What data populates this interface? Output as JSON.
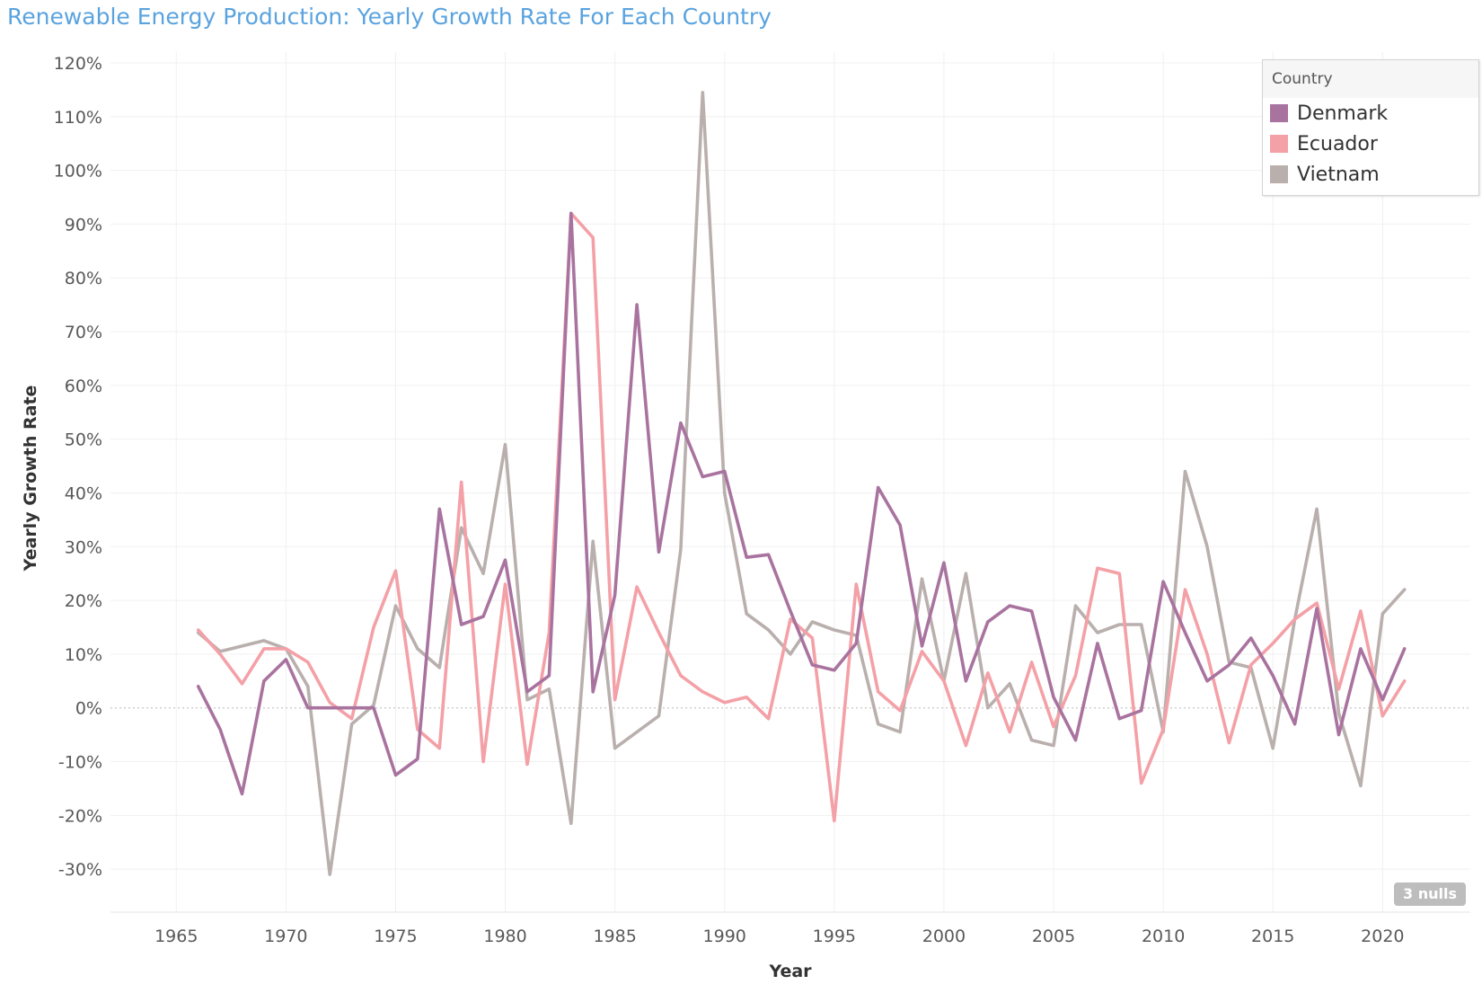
{
  "chart_data": {
    "type": "line",
    "title": "Renewable Energy Production: Yearly Growth Rate For Each Country",
    "xlabel": "Year",
    "ylabel": "Yearly Growth Rate",
    "xlim": [
      1962,
      2024
    ],
    "ylim": [
      -38,
      122
    ],
    "x_ticks": [
      1965,
      1970,
      1975,
      1980,
      1985,
      1990,
      1995,
      2000,
      2005,
      2010,
      2015,
      2020
    ],
    "y_ticks": [
      -30,
      -20,
      -10,
      0,
      10,
      20,
      30,
      40,
      50,
      60,
      70,
      80,
      90,
      100,
      110,
      120
    ],
    "y_tick_labels": [
      "-30%",
      "-20%",
      "-10%",
      "0%",
      "10%",
      "20%",
      "30%",
      "40%",
      "50%",
      "60%",
      "70%",
      "80%",
      "90%",
      "100%",
      "110%",
      "120%"
    ],
    "x": [
      1966,
      1967,
      1968,
      1969,
      1970,
      1971,
      1972,
      1973,
      1974,
      1975,
      1976,
      1977,
      1978,
      1979,
      1980,
      1981,
      1982,
      1983,
      1984,
      1985,
      1986,
      1987,
      1988,
      1989,
      1990,
      1991,
      1992,
      1993,
      1994,
      1995,
      1996,
      1997,
      1998,
      1999,
      2000,
      2001,
      2002,
      2003,
      2004,
      2005,
      2006,
      2007,
      2008,
      2009,
      2010,
      2011,
      2012,
      2013,
      2014,
      2015,
      2016,
      2017,
      2018,
      2019,
      2020,
      2021
    ],
    "series": [
      {
        "name": "Denmark",
        "color": "#a9739f",
        "values": [
          4,
          -4,
          -16,
          5,
          9,
          0,
          0,
          0,
          0,
          -12.5,
          -9.5,
          37,
          15.5,
          17,
          27.5,
          3,
          6,
          92,
          3,
          21,
          75,
          29,
          53,
          43,
          44,
          28,
          28.5,
          18,
          8,
          7,
          12,
          41,
          34,
          11.5,
          27,
          5,
          16,
          19,
          18,
          2,
          -6,
          12,
          -2,
          -0.5,
          23.5,
          14,
          5,
          8,
          13,
          6,
          -3,
          18.5,
          -5,
          11,
          1.5,
          11
        ]
      },
      {
        "name": "Ecuador",
        "color": "#f4a0a7",
        "values": [
          14.5,
          10,
          4.5,
          11,
          11,
          8.5,
          1,
          -2,
          15,
          25.5,
          -4,
          -7.5,
          42,
          -10,
          23,
          -10.5,
          14,
          92,
          87.5,
          1.5,
          22.5,
          14,
          6,
          3,
          1,
          2,
          -2,
          16.5,
          13,
          -21,
          23,
          3,
          -0.5,
          10.5,
          5,
          -7,
          6.5,
          -4.5,
          8.5,
          -3.5,
          6,
          26,
          25,
          -14,
          -4,
          22,
          10,
          -6.5,
          8,
          12,
          16.5,
          19.5,
          3.5,
          18,
          -1.5,
          5
        ]
      },
      {
        "name": "Vietnam",
        "color": "#b9b0ae",
        "values": [
          14,
          10.5,
          11.5,
          12.5,
          11,
          4,
          -31,
          -3,
          0.5,
          19,
          11,
          7.5,
          33.5,
          25,
          49,
          1.5,
          3.5,
          -21.5,
          31,
          -7.5,
          -4.5,
          -1.5,
          29.5,
          114.5,
          40,
          17.5,
          14.5,
          10,
          16,
          14.5,
          13.5,
          -3,
          -4.5,
          24,
          5,
          25,
          0,
          4.5,
          -6,
          -7,
          19,
          14,
          15.5,
          15.5,
          -4.5,
          44,
          30,
          8.5,
          7.5,
          -7.5,
          16.5,
          37,
          -1,
          -14.5,
          17.5,
          22
        ]
      }
    ],
    "legend": {
      "title": "Country",
      "position": "top-right"
    },
    "annotations": {
      "nulls": "3 nulls"
    },
    "grid": true
  }
}
